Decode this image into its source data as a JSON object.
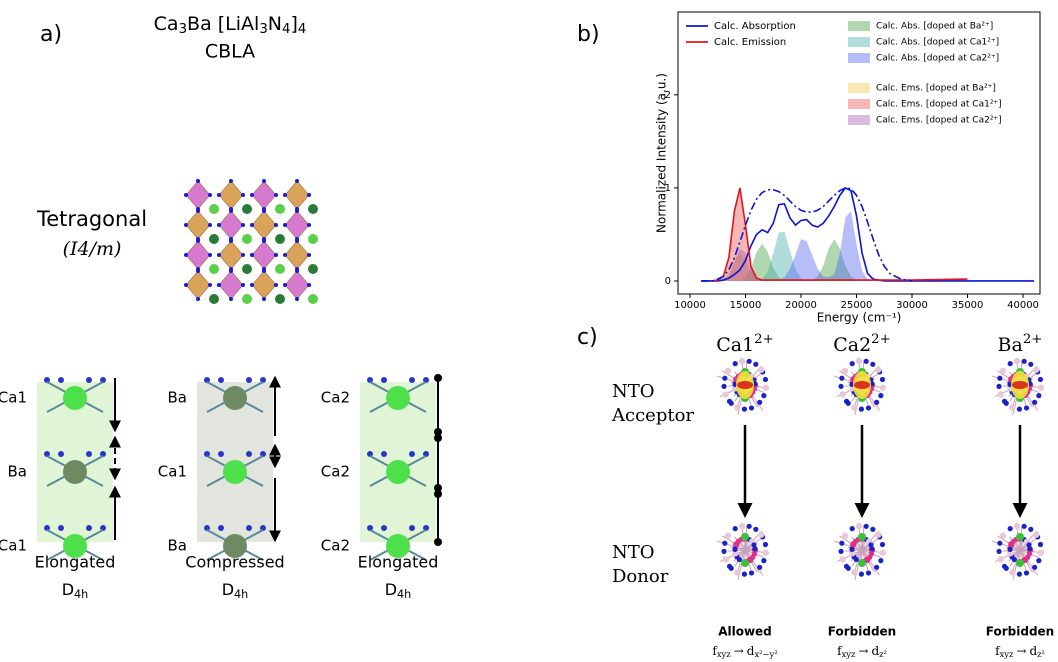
{
  "panel_a": {
    "label": "a)",
    "formula": [
      "Ca",
      "3",
      "Ba [LiAl",
      "3",
      "N",
      "4",
      "]",
      "4"
    ],
    "abbreviation": "CBLA",
    "lattice": "Tetragonal",
    "space_group": "(I4/m)",
    "structures": [
      {
        "sites": [
          "Ca1",
          "Ba",
          "Ca1"
        ],
        "shape": "Elongated",
        "symmetry": [
          "D",
          "4h"
        ]
      },
      {
        "sites": [
          "Ba",
          "Ca1",
          "Ba"
        ],
        "shape": "Compressed",
        "symmetry": [
          "D",
          "4h"
        ]
      },
      {
        "sites": [
          "Ca2",
          "Ca2",
          "Ca2"
        ],
        "shape": "Elongated",
        "symmetry": [
          "D",
          "4h"
        ]
      }
    ]
  },
  "panel_b": {
    "label": "b)"
  },
  "chart_data": {
    "type": "line",
    "xlabel": "Energy (cm⁻¹)",
    "ylabel": "Normalized Intensity (a.u.)",
    "xlim": [
      8920,
      41530
    ],
    "xticks": [
      {
        "value": 10000,
        "label": "10000"
      },
      15000,
      20000,
      25000,
      30000,
      35000,
      40000
    ],
    "ylim": [
      -0.14,
      2.89
    ],
    "yticks": [
      0,
      1,
      2
    ],
    "legend": "upper left",
    "x": [
      11000,
      11500,
      12000,
      12500,
      13000,
      13500,
      14000,
      14500,
      15000,
      15500,
      16000,
      16500,
      17000,
      17500,
      18000,
      18500,
      19000,
      19500,
      20000,
      20500,
      21000,
      21500,
      22000,
      22500,
      23000,
      23500,
      24000,
      24500,
      25000,
      25500,
      26000,
      26500,
      27000,
      27500,
      28000,
      29000,
      30000,
      35000,
      41000
    ],
    "series": [
      {
        "name": "Calc. Absorption",
        "type": "line",
        "color": "#0a14d6",
        "values": [
          0,
          0,
          0,
          0,
          0.01,
          0.03,
          0.07,
          0.12,
          0.22,
          0.38,
          0.5,
          0.55,
          0.52,
          0.62,
          0.82,
          0.83,
          0.68,
          0.6,
          0.65,
          0.66,
          0.6,
          0.58,
          0.62,
          0.7,
          0.8,
          0.92,
          1.0,
          0.97,
          0.7,
          0.3,
          0.08,
          0.02,
          0.01,
          0,
          0,
          0,
          0,
          0,
          0
        ]
      },
      {
        "name": "Calc. Emission",
        "type": "line",
        "color": "#e3151a",
        "values": [
          null,
          null,
          0,
          0.01,
          0.05,
          0.25,
          0.75,
          1.0,
          0.6,
          0.15,
          0.03,
          0.01,
          0.01,
          0.01,
          0.01,
          0.01,
          0.01,
          0.01,
          0.01,
          0.01,
          0.01,
          0.01,
          0.01,
          0.01,
          0.01,
          0.01,
          0.01,
          0.01,
          0.01,
          0.01,
          0.01,
          0.01,
          0.01,
          0.01,
          0.01,
          0.01,
          0.01,
          0.02,
          null
        ]
      },
      {
        "type": "line",
        "color": "#0a14d6",
        "dash": "dashdot",
        "values": [
          0,
          0,
          0,
          0.02,
          0.05,
          0.12,
          0.25,
          0.42,
          0.6,
          0.76,
          0.88,
          0.95,
          0.98,
          0.98,
          0.96,
          0.92,
          0.86,
          0.8,
          0.76,
          0.74,
          0.74,
          0.76,
          0.8,
          0.86,
          0.92,
          0.97,
          1.0,
          0.99,
          0.92,
          0.8,
          0.63,
          0.45,
          0.28,
          0.16,
          0.08,
          0.02,
          0,
          null,
          null
        ]
      },
      {
        "name": "Calc. Abs. [doped at Ba²⁺]",
        "type": "area",
        "color": "#3a9a3a",
        "values": [
          0,
          0,
          0,
          0,
          0,
          0,
          0,
          0,
          0.04,
          0.14,
          0.31,
          0.4,
          0.31,
          0.14,
          0.04,
          0.01,
          0,
          0,
          0,
          0,
          0,
          0.05,
          0.16,
          0.35,
          0.45,
          0.35,
          0.16,
          0.05,
          0.01,
          0,
          0,
          0,
          0,
          0,
          0,
          0,
          0,
          0,
          0
        ]
      },
      {
        "name": "Calc. Abs. [doped at Ca1²⁺]",
        "type": "area",
        "color": "#3aaaa0",
        "values": [
          0,
          0,
          0,
          0,
          0,
          0,
          0,
          0,
          0,
          0,
          0,
          0.02,
          0.1,
          0.3,
          0.52,
          0.53,
          0.33,
          0.13,
          0.03,
          0.01,
          0,
          0,
          0,
          0,
          0,
          0,
          0,
          0,
          0,
          0,
          0,
          0,
          0,
          0,
          0,
          0,
          0,
          0,
          0
        ]
      },
      {
        "name": "Calc. Abs. [doped at Ca2²⁺]",
        "type": "area",
        "color": "#4a5af0",
        "values": [
          0,
          0,
          0,
          0,
          0,
          0,
          0,
          0,
          0,
          0,
          0,
          0,
          0,
          0,
          0,
          0.04,
          0.13,
          0.28,
          0.45,
          0.43,
          0.28,
          0.13,
          0.05,
          0.04,
          0.07,
          0.3,
          0.68,
          0.75,
          0.39,
          0.11,
          0.02,
          0,
          0,
          0,
          0,
          0,
          0,
          0,
          0
        ]
      },
      {
        "name": "Calc. Ems. [doped at Ba²⁺]",
        "type": "area",
        "color": "#f7c046",
        "values": [
          0,
          0,
          0,
          0,
          0.02,
          0.1,
          0.25,
          0.3,
          0.2,
          0.06,
          0.01,
          0,
          0,
          0,
          0,
          0,
          0,
          0,
          0,
          0,
          0,
          0,
          0,
          0,
          0,
          0,
          0,
          0,
          0,
          0,
          0,
          0,
          0,
          0,
          0,
          0,
          0,
          0,
          0
        ]
      },
      {
        "name": "Calc. Ems. [doped at Ca1²⁺]",
        "type": "area",
        "color": "#e84a4a",
        "values": [
          0,
          0,
          0,
          0.01,
          0.05,
          0.25,
          0.75,
          1.0,
          0.6,
          0.15,
          0.03,
          0,
          0,
          0,
          0,
          0,
          0,
          0,
          0,
          0,
          0,
          0,
          0,
          0,
          0,
          0,
          0,
          0,
          0,
          0,
          0,
          0,
          0,
          0,
          0,
          0,
          0,
          0,
          0
        ]
      },
      {
        "name": "Calc. Ems. [doped at Ca2²⁺]",
        "type": "area",
        "color": "#a05aa8",
        "values": [
          0,
          0,
          0,
          0,
          0.01,
          0.06,
          0.2,
          0.35,
          0.3,
          0.12,
          0.03,
          0,
          0,
          0,
          0,
          0,
          0,
          0,
          0,
          0,
          0,
          0,
          0,
          0,
          0,
          0,
          0,
          0,
          0,
          0,
          0,
          0,
          0,
          0,
          0,
          0,
          0,
          0,
          0
        ]
      }
    ]
  },
  "panel_c": {
    "label": "c)",
    "rows": [
      [
        "NTO",
        "Acceptor"
      ],
      [
        "NTO",
        "Donor"
      ]
    ],
    "columns": [
      {
        "site": [
          "Ca1",
          "2+"
        ],
        "rule": "Allowed",
        "transition": [
          "f",
          "xyz",
          "→",
          "d",
          "x²−y²"
        ]
      },
      {
        "site": [
          "Ca2",
          "2+"
        ],
        "rule": "Forbidden",
        "transition": [
          "f",
          "xyz",
          "→",
          "d",
          "z²"
        ]
      },
      {
        "site": [
          "Ba",
          "2+"
        ],
        "rule": "Forbidden",
        "transition": [
          "f",
          "xyz",
          "→",
          "d",
          "z²"
        ]
      }
    ]
  }
}
